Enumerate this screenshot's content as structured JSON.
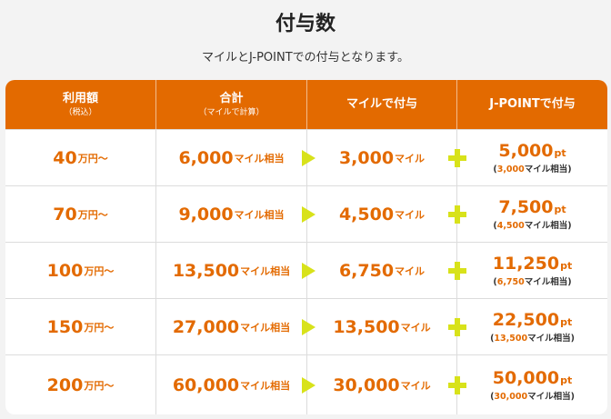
{
  "title": "付与数",
  "subtitle": "マイルとJ-POINTでの付与となります。",
  "header": {
    "col1": "利用額",
    "col1_sub": "（税込）",
    "col2": "合計",
    "col2_sub": "（マイルで計算）",
    "col3": "マイルで付与",
    "col4": "J-POINTで付与"
  },
  "units": {
    "man": "万円〜",
    "mile_eq": "マイル相当",
    "mile": "マイル",
    "pt": "pt"
  },
  "rows": [
    {
      "amount": "40",
      "total": "6,000",
      "miles": "3,000",
      "points": "5,000",
      "points_eq": "3,000"
    },
    {
      "amount": "70",
      "total": "9,000",
      "miles": "4,500",
      "points": "7,500",
      "points_eq": "4,500"
    },
    {
      "amount": "100",
      "total": "13,500",
      "miles": "6,750",
      "points": "11,250",
      "points_eq": "6,750"
    },
    {
      "amount": "150",
      "total": "27,000",
      "miles": "13,500",
      "points": "22,500",
      "points_eq": "13,500"
    },
    {
      "amount": "200",
      "total": "60,000",
      "miles": "30,000",
      "points": "50,000",
      "points_eq": "30,000"
    }
  ],
  "colors": {
    "accent": "#e36a00",
    "marker": "#d8e21a"
  },
  "icons": {
    "arrow": "triangle-right-icon",
    "plus": "plus-icon"
  }
}
